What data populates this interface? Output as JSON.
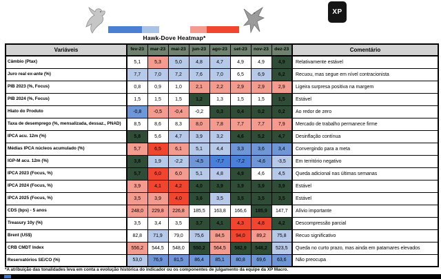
{
  "title": "Hawk-Dove Heatmap*",
  "logo": {
    "text": "XP"
  },
  "chart_data": {
    "type": "heatmap",
    "col_header_variables": "Variáveis",
    "col_header_comment": "Comentário",
    "columns": [
      "fev-23",
      "mar-23",
      "mai-23",
      "jun-23",
      "ago-23",
      "set-23",
      "nov-23",
      "dez-23"
    ],
    "legend": {
      "dove_colors": [
        "#4a7fd4",
        "#a9c3e6"
      ],
      "hawk_colors": [
        "#f49b8f",
        "#f0452f"
      ]
    },
    "tone_colors": {
      "W": "#ffffff",
      "LB": "#b7c9e8",
      "MB": "#6f97d8",
      "SB": "#4a80d9",
      "SAL": "#f49b8f",
      "RED": "#f0452f",
      "DG": "#2f4d36"
    },
    "rows": [
      {
        "label": "Câmbio (Ptax)",
        "values": [
          "5,1",
          "5,3",
          "5,0",
          "4,8",
          "4,7",
          "4,9",
          "4,9",
          "4,9"
        ],
        "tones": [
          "W",
          "SAL",
          "LB",
          "LB",
          "LB",
          "W",
          "W",
          "DG"
        ],
        "comment": "Relativamente estável"
      },
      {
        "label": "Juro real ex-ante (%)",
        "values": [
          "7,7",
          "7,0",
          "7,2",
          "7,6",
          "7,0",
          "6,5",
          "6,9",
          "6,2"
        ],
        "tones": [
          "LB",
          "LB",
          "LB",
          "LB",
          "LB",
          "W",
          "LB",
          "DG"
        ],
        "comment": "Recuou, mas segue em nível contracionista"
      },
      {
        "label": "PIB 2023 (%, Focus)",
        "values": [
          "0,8",
          "0,9",
          "1,0",
          "2,1",
          "2,2",
          "2,9",
          "2,9",
          "2,9"
        ],
        "tones": [
          "W",
          "W",
          "W",
          "SAL",
          "SAL",
          "SAL",
          "SAL",
          "SAL"
        ],
        "comment": "Ligeira surpresa positiva na margem"
      },
      {
        "label": "PIB 2024 (%, Focus)",
        "values": [
          "1,5",
          "1,5",
          "1,5",
          "1,2",
          "1,3",
          "1,5",
          "1,5",
          "1,5"
        ],
        "tones": [
          "W",
          "W",
          "W",
          "DG",
          "W",
          "W",
          "W",
          "DG"
        ],
        "comment": "Estável"
      },
      {
        "label": "Hiato do Produto",
        "values": [
          "-0,8",
          "-0,5",
          "-0,4",
          "-0,2",
          "0,3",
          "0,4",
          "0,2",
          "0,2"
        ],
        "tones": [
          "MB",
          "SAL",
          "SAL",
          "W",
          "DG",
          "DG",
          "DG",
          "DG"
        ],
        "comment": "Ao redor de zero"
      },
      {
        "label": "Taxa de desemprego (%, mensalizada, dessaz., PNAD)",
        "values": [
          "8,5",
          "8,6",
          "8,3",
          "8,0",
          "7,8",
          "7,7",
          "7,7",
          "7,9"
        ],
        "tones": [
          "W",
          "W",
          "W",
          "SAL",
          "SAL",
          "SAL",
          "SAL",
          "SAL"
        ],
        "comment": "Mercado de trabalho permanece firme"
      },
      {
        "label": "IPCA acu. 12m (%)",
        "values": [
          "5,8",
          "5,6",
          "4,7",
          "3,9",
          "3,2",
          "4,6",
          "5,2",
          "4,7"
        ],
        "tones": [
          "DG",
          "W",
          "LB",
          "LB",
          "LB",
          "DG",
          "DG",
          "DG"
        ],
        "comment": "Desinflação contínua"
      },
      {
        "label": "Médias IPCA núcleos acumulado (%)",
        "values": [
          "5,7",
          "6,5",
          "6,1",
          "5,1",
          "4,4",
          "3,3",
          "3,6",
          "3,4"
        ],
        "tones": [
          "SAL",
          "RED",
          "SAL",
          "LB",
          "LB",
          "MB",
          "MB",
          "MB"
        ],
        "comment": "Convergindo para a meta"
      },
      {
        "label": "IGP-M acu. 12m (%)",
        "values": [
          "3,8",
          "1,9",
          "-2,2",
          "-4,5",
          "-7,7",
          "-7,2",
          "-4,6",
          "-3,5"
        ],
        "tones": [
          "DG",
          "LB",
          "LB",
          "MB",
          "SB",
          "SB",
          "MB",
          "LB"
        ],
        "comment": "Em território negativo"
      },
      {
        "label": "IPCA 2023 (Focus, %)",
        "values": [
          "5,7",
          "6,0",
          "6,0",
          "5,1",
          "4,8",
          "4,9",
          "4,6",
          "4,5"
        ],
        "tones": [
          "DG",
          "RED",
          "SAL",
          "LB",
          "LB",
          "DG",
          "W",
          "LB"
        ],
        "comment": "Queda adicional nas últimas semanas"
      },
      {
        "label": "IPCA 2024 (Focus, %)",
        "values": [
          "3,9",
          "4,1",
          "4,2",
          "4,0",
          "3,9",
          "3,9",
          "3,9",
          "3,9"
        ],
        "tones": [
          "SAL",
          "RED",
          "RED",
          "DG",
          "DG",
          "DG",
          "DG",
          "DG"
        ],
        "comment": "Estável"
      },
      {
        "label": "IPCA 2025 (Focus, %)",
        "values": [
          "3,5",
          "3,9",
          "4,0",
          "3,6",
          "3,5",
          "3,5",
          "3,5",
          "3,5"
        ],
        "tones": [
          "SAL",
          "SAL",
          "RED",
          "DG",
          "LB",
          "DG",
          "DG",
          "DG"
        ],
        "comment": "Estável"
      },
      {
        "label": "CDS (bps) - 5 anos",
        "values": [
          "248,0",
          "229,8",
          "226,8",
          "185,5",
          "163,8",
          "166,6",
          "185,9",
          "147,7"
        ],
        "tones": [
          "SAL",
          "SAL",
          "SAL",
          "W",
          "W",
          "W",
          "DG",
          "W"
        ],
        "comment": "Alívio importante"
      },
      {
        "label": "Treasury 10y (%)",
        "values": [
          "3,5",
          "3,4",
          "3,5",
          "3,7",
          "4,1",
          "4,3",
          "4,8",
          "4,2"
        ],
        "tones": [
          "W",
          "W",
          "W",
          "DG",
          "DG",
          "RED",
          "RED",
          "DG"
        ],
        "comment": "Descompressão parcial"
      },
      {
        "label": "Brent (US$)",
        "values": [
          "82,8",
          "71,9",
          "79,0",
          "75,6",
          "84,5",
          "94,0",
          "89,2",
          "75,8"
        ],
        "tones": [
          "W",
          "LB",
          "W",
          "LB",
          "SAL",
          "RED",
          "SAL",
          "LB"
        ],
        "comment": "Recuo significativo"
      },
      {
        "label": "CRB CMDT Index",
        "values": [
          "556,2",
          "544,5",
          "548,0",
          "550,2",
          "564,5",
          "582,9",
          "548,2",
          "523,5"
        ],
        "tones": [
          "SAL",
          "W",
          "W",
          "DG",
          "SAL",
          "DG",
          "DG",
          "LB"
        ],
        "comment": "Queda no curto prazo, mas ainda em patamares elevados"
      },
      {
        "label": "Reservatórios SE/CO (%)",
        "values": [
          "53,0",
          "76,9",
          "81,5",
          "86,4",
          "85,1",
          "80,8",
          "69,6",
          "63,6"
        ],
        "tones": [
          "LB",
          "MB",
          "MB",
          "MB",
          "MB",
          "MB",
          "MB",
          "MB"
        ],
        "comment": "Não preocupa"
      }
    ]
  },
  "footnote": "*A atribuição das tonalidades leva em conta a evolução histórica do indicador ou os componentes de julgamento da equipe da XP Macro."
}
